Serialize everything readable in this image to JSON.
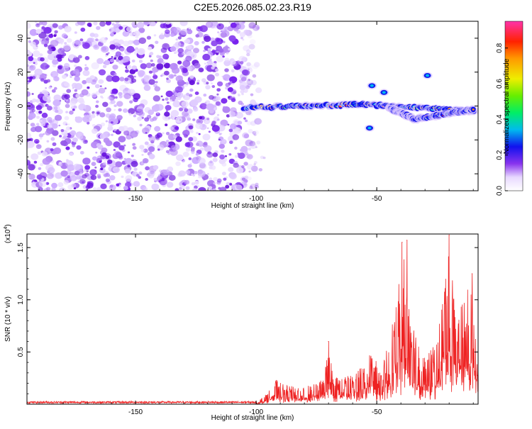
{
  "title": "C2E5.2026.085.02.23.R19",
  "chart_data": [
    {
      "type": "heatmap",
      "name": "spectrogram",
      "xlabel": "Height of straight line (km)",
      "ylabel": "Frequency (Hz)",
      "xlim": [
        -195,
        -8
      ],
      "ylim": [
        -50,
        50
      ],
      "xticks": [
        -150,
        -100,
        -50
      ],
      "yticks": [
        -40,
        -20,
        0,
        20,
        40
      ],
      "noise_region_x": [
        -195,
        -98
      ],
      "signal_segments": [
        {
          "x": [
            -105,
            -55
          ],
          "y": [
            -1,
            1
          ]
        },
        {
          "x": [
            -55,
            -10
          ],
          "y": [
            1,
            -3
          ]
        },
        {
          "x": [
            -45,
            -35
          ],
          "y": [
            -1,
            -7
          ]
        },
        {
          "x": [
            -35,
            -10
          ],
          "y": [
            -8,
            -2
          ]
        }
      ],
      "signal_blobs": [
        {
          "x": -52,
          "y": 12
        },
        {
          "x": -47,
          "y": 8
        },
        {
          "x": -53,
          "y": -13
        },
        {
          "x": -29,
          "y": 18
        }
      ],
      "colorbar": {
        "label": "Normalized spectral amplitude",
        "range": [
          0,
          0.95
        ],
        "ticks": [
          "0.0",
          "0.2",
          "0.4",
          "0.6",
          "0.8"
        ]
      }
    },
    {
      "type": "line",
      "name": "snr",
      "xlabel": "Height of straight line (km)",
      "ylabel": "SNR (10 * v/v)",
      "multiplier": "(x10",
      "multiplier_exp": "4",
      "multiplier_close": ")",
      "color": "#ee2222",
      "xlim": [
        -195,
        -8
      ],
      "ylim": [
        0,
        1.63
      ],
      "xticks": [
        -150,
        -100,
        -50
      ],
      "yticks": [
        "0.5",
        "1.0",
        "1.5"
      ],
      "profile": [
        {
          "x": -195,
          "y": 0.0
        },
        {
          "x": -100,
          "y": 0.01
        },
        {
          "x": -95,
          "y": 0.12
        },
        {
          "x": -92,
          "y": 0.25
        },
        {
          "x": -88,
          "y": 0.18
        },
        {
          "x": -80,
          "y": 0.16
        },
        {
          "x": -72,
          "y": 0.24
        },
        {
          "x": -70,
          "y": 0.6
        },
        {
          "x": -68,
          "y": 0.26
        },
        {
          "x": -60,
          "y": 0.28
        },
        {
          "x": -55,
          "y": 0.42
        },
        {
          "x": -52,
          "y": 0.5
        },
        {
          "x": -48,
          "y": 0.3
        },
        {
          "x": -45,
          "y": 0.65
        },
        {
          "x": -42,
          "y": 0.95
        },
        {
          "x": -39,
          "y": 1.5
        },
        {
          "x": -35,
          "y": 0.8
        },
        {
          "x": -30,
          "y": 0.45
        },
        {
          "x": -25,
          "y": 0.6
        },
        {
          "x": -20,
          "y": 1.6
        },
        {
          "x": -17,
          "y": 0.8
        },
        {
          "x": -12,
          "y": 1.2
        },
        {
          "x": -8,
          "y": 0.68
        }
      ],
      "peaks": [
        {
          "x": -70,
          "y": 0.6
        },
        {
          "x": -39.5,
          "y": 1.55
        },
        {
          "x": -37.5,
          "y": 1.57
        },
        {
          "x": -20,
          "y": 1.62
        },
        {
          "x": -10.5,
          "y": 1.25
        }
      ]
    }
  ]
}
